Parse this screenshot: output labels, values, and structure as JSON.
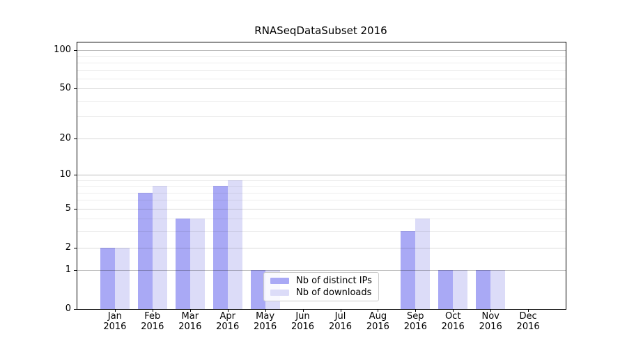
{
  "title": "RNASeqDataSubset 2016",
  "chart_data": {
    "type": "bar",
    "title": "RNASeqDataSubset 2016",
    "categories": [
      "Jan",
      "Feb",
      "Mar",
      "Apr",
      "May",
      "Jun",
      "Jul",
      "Aug",
      "Sep",
      "Oct",
      "Nov",
      "Dec"
    ],
    "year": "2016",
    "series": [
      {
        "name": "Nb of distinct IPs",
        "color": "#a9a9f5",
        "values": [
          2,
          7,
          4,
          8,
          1,
          0,
          0,
          0,
          3,
          1,
          1,
          0
        ]
      },
      {
        "name": "Nb of downloads",
        "color": "#dcdcf8",
        "values": [
          2,
          8,
          4,
          9,
          1,
          0,
          0,
          0,
          4,
          1,
          1,
          0
        ]
      }
    ],
    "xlabel": "",
    "ylabel": "",
    "yscale": "log10(1+v)",
    "ylim": [
      0,
      115
    ],
    "ytick_labels": [
      "0",
      "1",
      "2",
      "5",
      "10",
      "20",
      "50",
      "100"
    ],
    "yticks_major": [
      1,
      10,
      100
    ],
    "yticks_mid": [
      2,
      5,
      20,
      50
    ],
    "yticks_minor": [
      3,
      4,
      6,
      7,
      8,
      9,
      30,
      40,
      60,
      70,
      80,
      90
    ],
    "grid": "horizontal",
    "legend_position": "inside-lower-center"
  }
}
